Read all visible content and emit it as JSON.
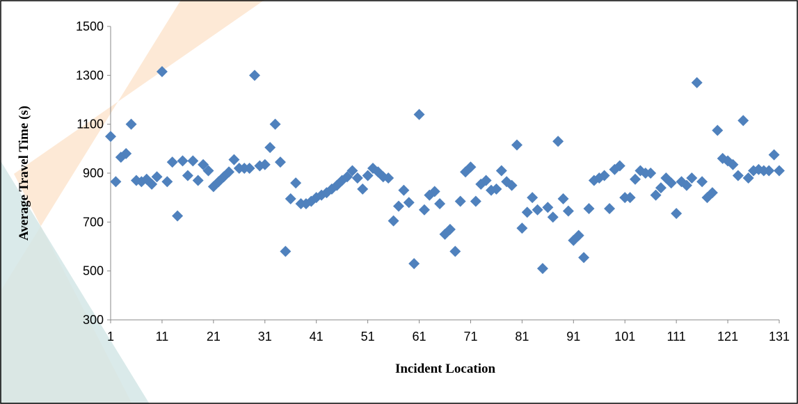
{
  "chart_data": {
    "type": "scatter",
    "x_label": "Incident Location",
    "y_label": "Average Travel Time (s)",
    "xlim": [
      1,
      131
    ],
    "ylim": [
      300,
      1500
    ],
    "xticks": [
      1,
      11,
      21,
      31,
      41,
      51,
      61,
      71,
      81,
      91,
      101,
      111,
      121,
      131
    ],
    "yticks": [
      300,
      500,
      700,
      900,
      1100,
      1300,
      1500
    ],
    "grid": false,
    "series": [
      {
        "color": "#4f81bd",
        "x": [
          1,
          2,
          3,
          4,
          5,
          6,
          7,
          8,
          9,
          10,
          11,
          12,
          13,
          14,
          15,
          16,
          17,
          18,
          19,
          20,
          21,
          22,
          23,
          24,
          25,
          26,
          27,
          28,
          29,
          30,
          31,
          32,
          33,
          34,
          35,
          36,
          37,
          38,
          39,
          40,
          41,
          42,
          43,
          44,
          45,
          46,
          47,
          48,
          49,
          50,
          51,
          52,
          53,
          54,
          55,
          56,
          57,
          58,
          59,
          60,
          61,
          62,
          63,
          64,
          65,
          66,
          67,
          68,
          69,
          70,
          71,
          72,
          73,
          74,
          75,
          76,
          77,
          78,
          79,
          80,
          81,
          82,
          83,
          84,
          85,
          86,
          87,
          88,
          89,
          90,
          91,
          92,
          93,
          94,
          95,
          96,
          97,
          98,
          99,
          100,
          101,
          102,
          103,
          104,
          105,
          106,
          107,
          108,
          109,
          110,
          111,
          112,
          113,
          114,
          115,
          116,
          117,
          118,
          119,
          120,
          121,
          122,
          123,
          124,
          125,
          126,
          127,
          128,
          129,
          130,
          131
        ],
        "values": [
          1050,
          865,
          965,
          980,
          1100,
          870,
          865,
          875,
          855,
          885,
          1315,
          865,
          945,
          725,
          950,
          890,
          950,
          870,
          935,
          910,
          845,
          865,
          885,
          905,
          955,
          920,
          920,
          920,
          1300,
          930,
          935,
          1005,
          1100,
          945,
          580,
          795,
          860,
          775,
          775,
          785,
          800,
          810,
          820,
          835,
          850,
          870,
          885,
          910,
          880,
          835,
          890,
          920,
          905,
          885,
          880,
          705,
          765,
          830,
          780,
          530,
          1140,
          750,
          810,
          825,
          775,
          650,
          670,
          580,
          785,
          905,
          925,
          785,
          855,
          870,
          830,
          835,
          910,
          865,
          850,
          1015,
          675,
          740,
          800,
          750,
          510,
          760,
          720,
          1030,
          795,
          745,
          625,
          645,
          555,
          755,
          870,
          880,
          890,
          755,
          915,
          930,
          800,
          800,
          875,
          910,
          900,
          900,
          810,
          840,
          880,
          860,
          735,
          865,
          850,
          880,
          1270,
          865,
          800,
          820,
          1075,
          960,
          950,
          935,
          890,
          1115,
          880,
          910,
          915,
          910,
          910,
          975,
          910
        ]
      }
    ]
  }
}
